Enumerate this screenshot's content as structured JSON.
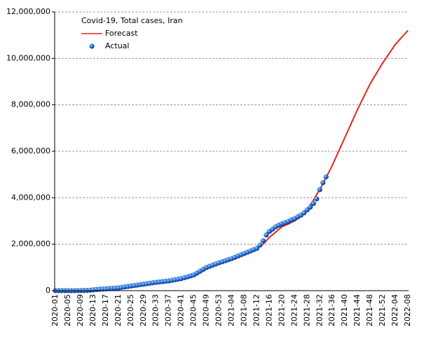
{
  "chart_data": {
    "type": "line",
    "title": "Covid-19, Total cases, Iran",
    "categories": [
      "2020-01",
      null,
      null,
      null,
      "2020-05",
      null,
      null,
      null,
      "2020-09",
      null,
      null,
      null,
      "2020-13",
      null,
      null,
      null,
      "2020-17",
      null,
      null,
      null,
      "2020-21",
      null,
      null,
      null,
      "2020-25",
      null,
      null,
      null,
      "2020-29",
      null,
      null,
      null,
      "2020-33",
      null,
      null,
      null,
      "2020-37",
      null,
      null,
      null,
      "2020-41",
      null,
      null,
      null,
      "2020-45",
      null,
      null,
      null,
      "2020-49",
      null,
      null,
      null,
      "2020-53",
      null,
      null,
      null,
      "2021-04",
      null,
      null,
      null,
      "2021-08",
      null,
      null,
      null,
      "2021-12",
      null,
      null,
      null,
      "2021-16",
      null,
      null,
      null,
      "2021-20",
      null,
      null,
      null,
      "2021-24",
      null,
      null,
      null,
      "2021-28",
      null,
      null,
      null,
      "2021-32",
      null,
      null,
      null,
      "2021-36",
      null,
      null,
      null,
      "2021-40",
      null,
      null,
      null,
      "2021-44",
      null,
      null,
      null,
      "2021-48",
      null,
      null,
      null,
      "2021-52",
      null,
      null,
      null,
      "2022-04",
      null,
      null,
      null,
      "2022-08"
    ],
    "series": [
      {
        "name": "Forecast",
        "color": "#e8241c",
        "style": "line",
        "values": [
          0,
          0,
          0,
          0,
          0,
          0,
          1000,
          2000,
          4000,
          7000,
          12000,
          20000,
          35000,
          50000,
          60000,
          70000,
          80000,
          90000,
          100000,
          110000,
          120000,
          140000,
          160000,
          180000,
          200000,
          220000,
          240000,
          260000,
          280000,
          300000,
          320000,
          340000,
          360000,
          375000,
          390000,
          405000,
          420000,
          445000,
          470000,
          495000,
          520000,
          560000,
          600000,
          640000,
          680000,
          760000,
          840000,
          920000,
          1000000,
          1050000,
          1100000,
          1150000,
          1200000,
          1245000,
          1290000,
          1335000,
          1380000,
          1435000,
          1490000,
          1545000,
          1600000,
          1655000,
          1710000,
          1765000,
          1820000,
          1910000,
          2000000,
          2150000,
          2300000,
          2410000,
          2520000,
          2640000,
          2750000,
          2810000,
          2870000,
          2940000,
          3000000,
          3100000,
          3200000,
          3300000,
          3500000,
          3700000,
          3900000,
          4130000,
          4360000,
          4600000,
          4870000,
          5130000,
          5400000,
          5700000,
          6000000,
          6300000,
          6600000,
          6900000,
          7200000,
          7500000,
          7800000,
          8080000,
          8350000,
          8630000,
          8900000,
          9130000,
          9350000,
          9580000,
          9800000,
          10000000,
          10200000,
          10400000,
          10600000,
          10750000,
          10900000,
          11050000,
          11200000
        ]
      },
      {
        "name": "Actual",
        "color": "#2a6fd6",
        "style": "markers",
        "values": [
          0,
          0,
          0,
          0,
          0,
          0,
          1000,
          2000,
          4000,
          7000,
          12000,
          20000,
          35000,
          50000,
          60000,
          70000,
          80000,
          90000,
          100000,
          110000,
          120000,
          140000,
          160000,
          180000,
          200000,
          220000,
          240000,
          260000,
          280000,
          300000,
          320000,
          340000,
          360000,
          375000,
          390000,
          405000,
          420000,
          445000,
          470000,
          495000,
          520000,
          560000,
          600000,
          640000,
          680000,
          760000,
          840000,
          920000,
          1000000,
          1050000,
          1100000,
          1150000,
          1200000,
          1245000,
          1290000,
          1335000,
          1380000,
          1435000,
          1490000,
          1545000,
          1600000,
          1655000,
          1710000,
          1765000,
          1820000,
          1960000,
          2150000,
          2400000,
          2550000,
          2650000,
          2750000,
          2820000,
          2880000,
          2930000,
          2980000,
          3050000,
          3100000,
          3180000,
          3250000,
          3350000,
          3480000,
          3600000,
          3750000,
          3950000,
          4350000,
          4650000,
          4900000,
          null,
          null,
          null,
          null,
          null,
          null,
          null,
          null,
          null,
          null,
          null,
          null,
          null,
          null,
          null,
          null,
          null,
          null,
          null,
          null,
          null,
          null,
          null,
          null,
          null,
          null
        ]
      }
    ],
    "ylim": [
      0,
      12000000
    ],
    "yticks": [
      0,
      {
        "value": 2000000,
        "label": "2,000,000"
      },
      {
        "value": 4000000,
        "label": "4,000,000"
      },
      {
        "value": 6000000,
        "label": "6,000,000"
      },
      {
        "value": 8000000,
        "label": "8,000,000"
      },
      {
        "value": 10000000,
        "label": "10,000,000"
      },
      {
        "value": 12000000,
        "label": "12,000,000"
      }
    ],
    "grid": true
  }
}
